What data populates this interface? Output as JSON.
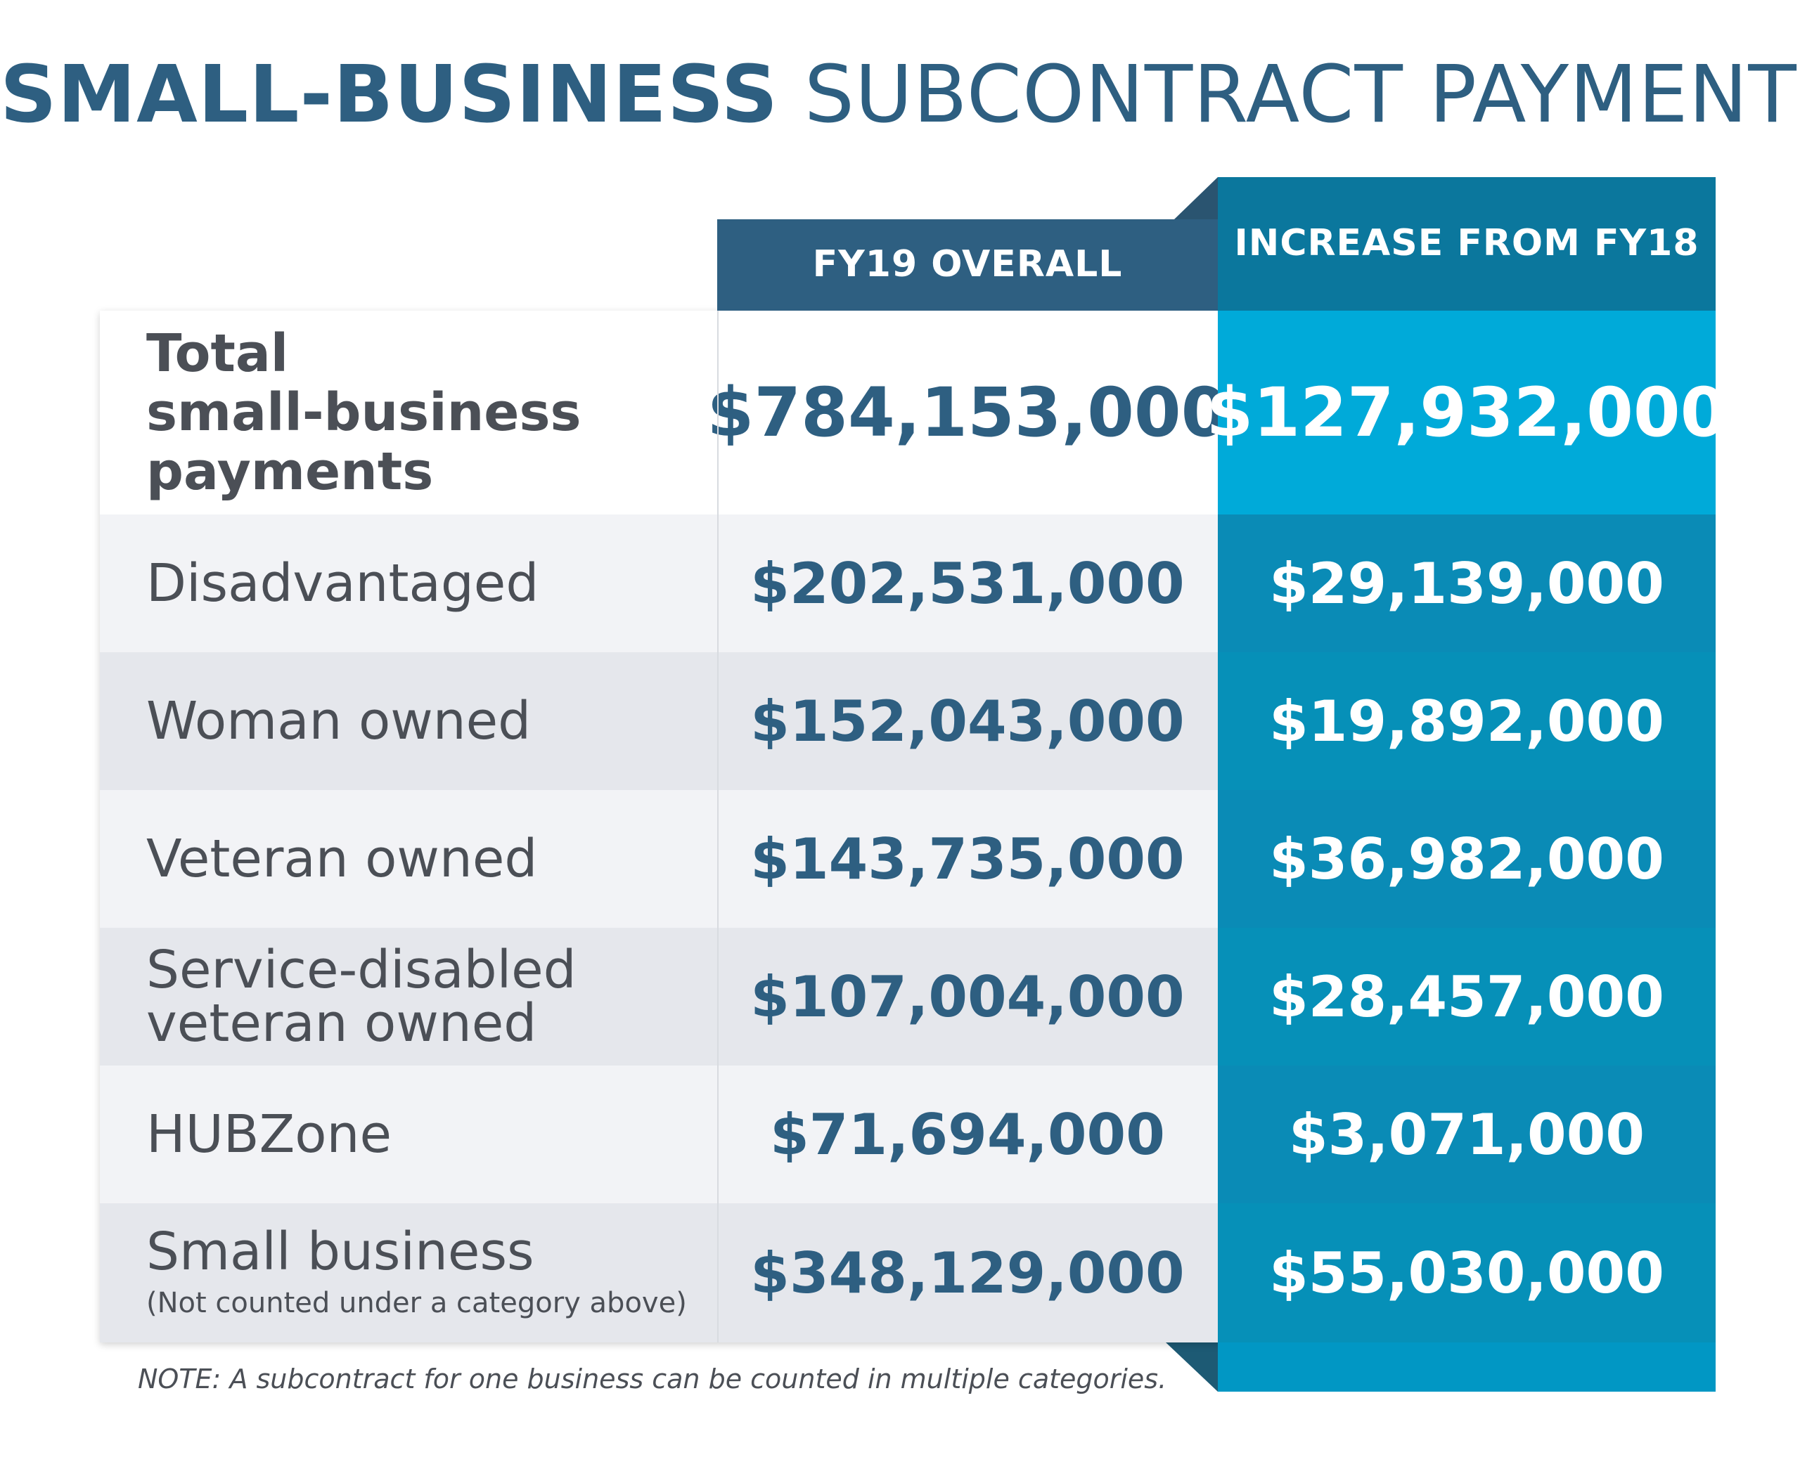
{
  "title": {
    "bold": "SMALL-BUSINESS",
    "light": "SUBCONTRACT PAYMENTS"
  },
  "columns": {
    "overall": "FY19 OVERALL",
    "increase": "INCREASE FROM FY18"
  },
  "total": {
    "label_line1": "Total",
    "label_line2": "small-business",
    "label_line3": "payments",
    "overall": "$784,153,000",
    "increase": "$127,932,000"
  },
  "rows": [
    {
      "label": "Disadvantaged",
      "overall": "$202,531,000",
      "increase": "$29,139,000"
    },
    {
      "label": "Woman owned",
      "overall": "$152,043,000",
      "increase": "$19,892,000"
    },
    {
      "label": "Veteran owned",
      "overall": "$143,735,000",
      "increase": "$36,982,000"
    },
    {
      "label_line1": "Service-disabled",
      "label_line2": "veteran owned",
      "overall": "$107,004,000",
      "increase": "$28,457,000"
    },
    {
      "label": "HUBZone",
      "overall": "$71,694,000",
      "increase": "$3,071,000"
    },
    {
      "label": "Small business",
      "sublabel": "(Not counted under a category above)",
      "overall": "$348,129,000",
      "increase": "$55,030,000"
    }
  ],
  "note": "NOTE:  A subcontract for one business can be counted in multiple categories.",
  "colors": {
    "title": "#2e5f81",
    "header_overall": "#2e5f81",
    "header_increase": "#0b779d",
    "increase_total": "#00aad9",
    "increase_rows": "#0a8bb6"
  },
  "chart_data": {
    "type": "table",
    "title": "SMALL-BUSINESS SUBCONTRACT PAYMENTS",
    "columns": [
      "FY19 OVERALL",
      "INCREASE FROM FY18"
    ],
    "categories": [
      "Total small-business payments",
      "Disadvantaged",
      "Woman owned",
      "Veteran owned",
      "Service-disabled veteran owned",
      "HUBZone",
      "Small business"
    ],
    "series": [
      {
        "name": "FY19 OVERALL",
        "values": [
          784153000,
          202531000,
          152043000,
          143735000,
          107004000,
          71694000,
          348129000
        ]
      },
      {
        "name": "INCREASE FROM FY18",
        "values": [
          127932000,
          29139000,
          19892000,
          36982000,
          28457000,
          3071000,
          55030000
        ]
      }
    ]
  }
}
